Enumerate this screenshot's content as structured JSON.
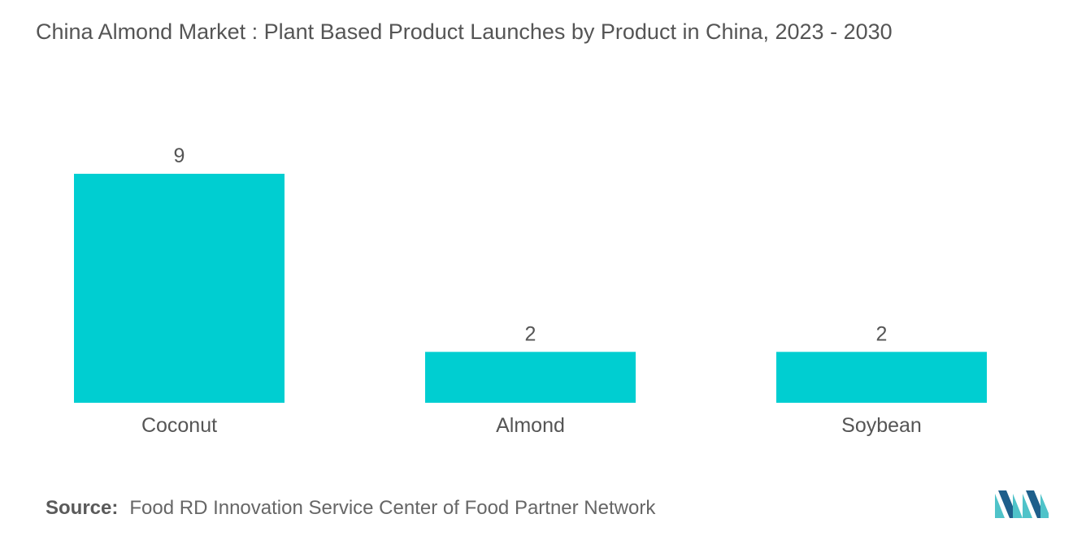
{
  "title": "China Almond Market : Plant Based Product Launches by Product in China, 2023 - 2030",
  "source": {
    "label": "Source:",
    "text": "Food RD Innovation Service Center of Food Partner Network"
  },
  "colors": {
    "bar": "#00CED1",
    "text": "#555555",
    "logo_dark": "#1f5f8b",
    "logo_light": "#4fc3c9"
  },
  "chart_data": {
    "type": "bar",
    "categories": [
      "Coconut",
      "Almond",
      "Soybean"
    ],
    "values": [
      9,
      2,
      2
    ],
    "title": "China Almond Market : Plant Based Product Launches by Product in China, 2023 - 2030",
    "xlabel": "",
    "ylabel": "",
    "ylim": [
      0,
      9
    ],
    "grid": false,
    "legend": "none"
  }
}
